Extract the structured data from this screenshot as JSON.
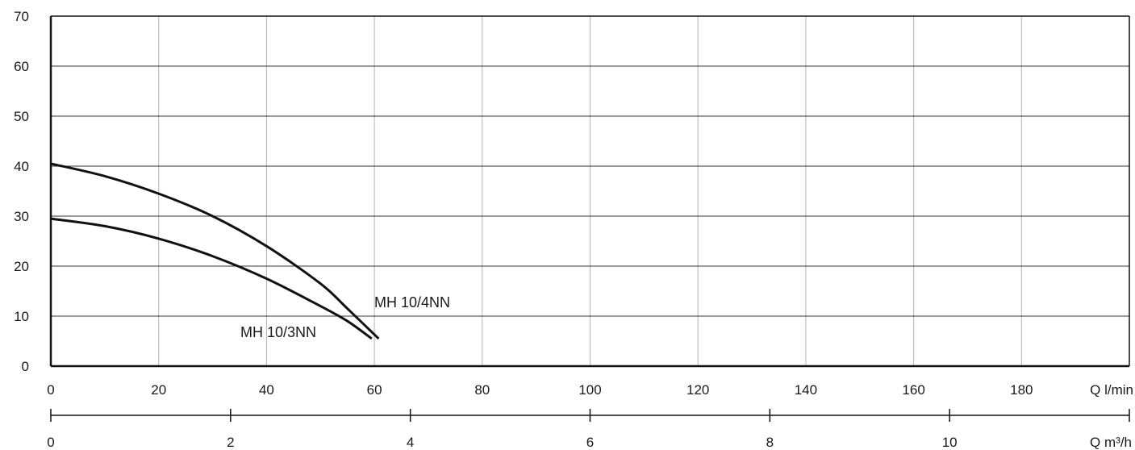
{
  "chart_data": {
    "type": "line",
    "title": "",
    "grid": true,
    "ylim": [
      0,
      70
    ],
    "y_ticks": [
      "0",
      "10",
      "20",
      "30",
      "40",
      "50",
      "60",
      "70"
    ],
    "x_primary": {
      "label": "Q l/min",
      "range": [
        0,
        200
      ],
      "ticks": [
        "0",
        "20",
        "40",
        "60",
        "80",
        "100",
        "120",
        "140",
        "160",
        "180"
      ]
    },
    "x_secondary": {
      "label": "Q m³/h",
      "range": [
        0,
        12
      ],
      "ticks": [
        "0",
        "2",
        "4",
        "6",
        "8",
        "10"
      ]
    },
    "series": [
      {
        "name": "MH 10/4NN",
        "x": [
          0,
          10,
          20,
          30,
          40,
          50,
          55,
          60.8
        ],
        "y": [
          40.5,
          38,
          34.5,
          30,
          24,
          16.5,
          11.5,
          5.5
        ]
      },
      {
        "name": "MH 10/3NN",
        "x": [
          0,
          10,
          20,
          30,
          40,
          50,
          55,
          59.5
        ],
        "y": [
          29.5,
          28,
          25.5,
          22,
          17.5,
          12,
          9,
          5.5
        ]
      }
    ],
    "colors": {
      "line": "#111111",
      "grid": "#b3b3b3",
      "major_grid": "#333333"
    }
  }
}
